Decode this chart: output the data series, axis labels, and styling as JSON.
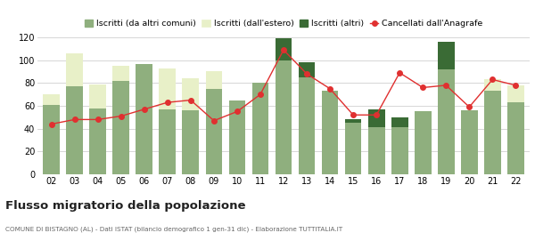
{
  "years": [
    "02",
    "03",
    "04",
    "05",
    "06",
    "07",
    "08",
    "09",
    "10",
    "11",
    "12",
    "13",
    "14",
    "15",
    "16",
    "17",
    "18",
    "19",
    "20",
    "21",
    "22"
  ],
  "iscritti_comuni": [
    61,
    77,
    58,
    82,
    97,
    57,
    56,
    75,
    65,
    80,
    100,
    85,
    73,
    45,
    41,
    41,
    55,
    92,
    56,
    73,
    63
  ],
  "iscritti_estero": [
    9,
    29,
    21,
    13,
    0,
    36,
    28,
    15,
    0,
    0,
    0,
    0,
    0,
    0,
    0,
    0,
    0,
    0,
    0,
    10,
    15
  ],
  "iscritti_altri": [
    0,
    0,
    0,
    0,
    0,
    0,
    0,
    0,
    0,
    0,
    19,
    13,
    0,
    3,
    16,
    9,
    0,
    24,
    0,
    0,
    0
  ],
  "cancellati": [
    44,
    48,
    48,
    51,
    57,
    63,
    65,
    47,
    55,
    70,
    109,
    88,
    75,
    52,
    52,
    89,
    76,
    78,
    59,
    83,
    78
  ],
  "color_comuni": "#8faf7e",
  "color_estero": "#e8f0c8",
  "color_altri": "#3a6b35",
  "color_cancellati": "#e03030",
  "ylim": [
    0,
    120
  ],
  "yticks": [
    0,
    20,
    40,
    60,
    80,
    100,
    120
  ],
  "title": "Flusso migratorio della popolazione",
  "subtitle": "COMUNE DI BISTAGNO (AL) - Dati ISTAT (bilancio demografico 1 gen-31 dic) - Elaborazione TUTTITALIA.IT",
  "legend_labels": [
    "Iscritti (da altri comuni)",
    "Iscritti (dall'estero)",
    "Iscritti (altri)",
    "Cancellati dall'Anagrafe"
  ],
  "bg_color": "#ffffff",
  "grid_color": "#d0d0d0"
}
